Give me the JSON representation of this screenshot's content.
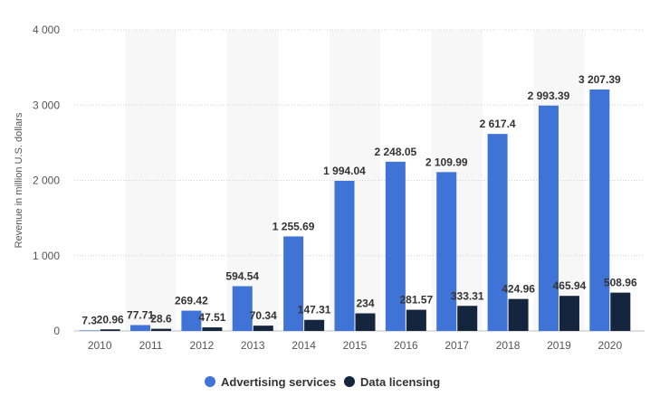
{
  "chart_data": {
    "type": "bar",
    "categories": [
      "2010",
      "2011",
      "2012",
      "2013",
      "2014",
      "2015",
      "2016",
      "2017",
      "2018",
      "2019",
      "2020"
    ],
    "series": [
      {
        "name": "Advertising services",
        "color": "#3f74d6",
        "values": [
          7.3,
          77.71,
          269.42,
          594.54,
          1255.69,
          1994.04,
          2248.05,
          2109.99,
          2617.4,
          2993.39,
          3207.39
        ],
        "labels": [
          "7.3",
          "77.71",
          "269.42",
          "594.54",
          "1 255.69",
          "1 994.04",
          "2 248.05",
          "2 109.99",
          "2 617.4",
          "2 993.39",
          "3 207.39"
        ]
      },
      {
        "name": "Data licensing",
        "color": "#15253d",
        "values": [
          20.96,
          28.6,
          47.51,
          70.34,
          147.31,
          234,
          281.57,
          333.31,
          424.96,
          465.94,
          508.96
        ],
        "labels": [
          "20.96",
          "28.6",
          "47.51",
          "70.34",
          "147.31",
          "234",
          "281.57",
          "333.31",
          "424.96",
          "465.94",
          "508.96"
        ]
      }
    ],
    "ylabel": "Revenue in million U.S. dollars",
    "xlabel": "",
    "ylim": [
      0,
      4000
    ],
    "yticks": [
      0,
      1000,
      2000,
      3000,
      4000
    ],
    "ytick_labels": [
      "0",
      "1 000",
      "2 000",
      "3 000",
      "4 000"
    ],
    "grid": true,
    "legend_position": "bottom-center"
  }
}
